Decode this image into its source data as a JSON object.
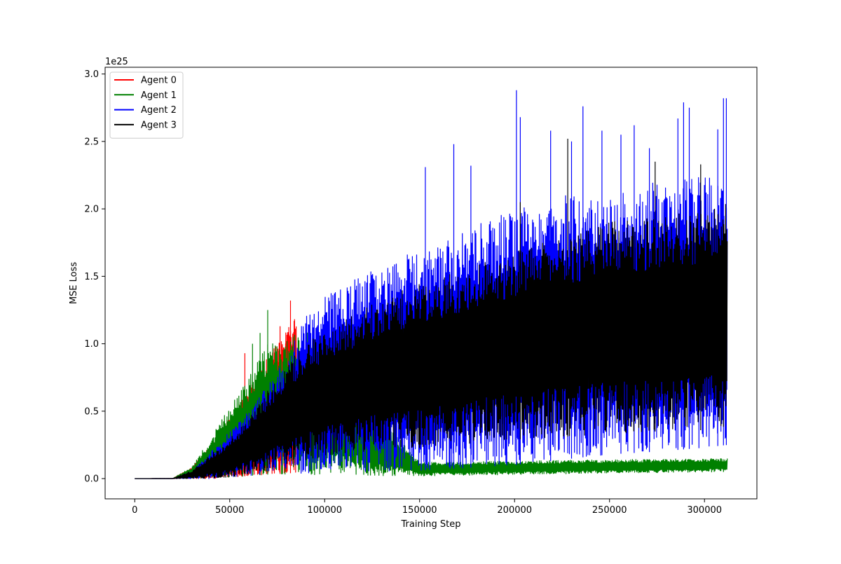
{
  "chart_data": {
    "type": "line",
    "title": "",
    "xlabel": "Training Step",
    "ylabel": "MSE Loss",
    "y_offset_text": "1e25",
    "y_scale": 1e+25,
    "xlim": [
      -15600,
      327600
    ],
    "ylim": [
      -1.5e+24,
      3.05e+25
    ],
    "x_ticks": [
      0,
      50000,
      100000,
      150000,
      200000,
      250000,
      300000
    ],
    "x_tick_labels": [
      "0",
      "50000",
      "100000",
      "150000",
      "200000",
      "250000",
      "300000"
    ],
    "y_ticks": [
      0,
      5e+24,
      1e+25,
      1.5e+25,
      2e+25,
      2.5e+25,
      3e+25
    ],
    "y_tick_labels": [
      "0.0",
      "0.5",
      "1.0",
      "1.5",
      "2.0",
      "2.5",
      "3.0"
    ],
    "grid": false,
    "legend_position": "upper-left",
    "x_max_step": 312000,
    "series": [
      {
        "name": "Agent 0",
        "color": "#ff0000",
        "x_end": 85000,
        "envelope_steps": [
          0,
          20000,
          30000,
          40000,
          50000,
          60000,
          70000,
          80000,
          85000
        ],
        "envelope_upper": [
          0,
          1e+22,
          8e+23,
          2.5e+24,
          4.5e+24,
          6.5e+24,
          9e+24,
          1.1e+25,
          1.2e+25
        ],
        "envelope_lower": [
          0,
          0,
          0,
          0,
          1e+23,
          2e+23,
          3e+23,
          4e+23,
          4e+23
        ],
        "spikes": [
          [
            58000,
            9.3e+24
          ],
          [
            76500,
            1.13e+25
          ],
          [
            82000,
            1.32e+25
          ]
        ]
      },
      {
        "name": "Agent 1",
        "color": "#008000",
        "x_end": 312000,
        "envelope_steps": [
          0,
          20000,
          30000,
          40000,
          50000,
          60000,
          70000,
          80000,
          90000,
          150000,
          200000,
          250000,
          312000
        ],
        "envelope_upper": [
          0,
          1e+22,
          9e+23,
          3e+24,
          5.5e+24,
          7.5e+24,
          1e+25,
          1.05e+25,
          1.1e+25,
          1.2e+24,
          1.3e+24,
          1.4e+24,
          1.5e+24
        ],
        "envelope_lower": [
          0,
          0,
          0,
          0,
          1e+23,
          2e+23,
          3e+23,
          3e+23,
          2e+23,
          2e+23,
          3e+23,
          4e+23,
          5e+23
        ],
        "spikes": [
          [
            70000,
            1.25e+25
          ],
          [
            66000,
            1.08e+25
          ],
          [
            62000,
            1e+25
          ]
        ]
      },
      {
        "name": "Agent 2",
        "color": "#0000ff",
        "x_end": 312000,
        "envelope_steps": [
          0,
          20000,
          30000,
          40000,
          50000,
          60000,
          80000,
          90000,
          100000,
          125000,
          150000,
          175000,
          200000,
          225000,
          250000,
          275000,
          300000,
          312000
        ],
        "envelope_upper": [
          0,
          1e+22,
          5e+23,
          2e+24,
          3.5e+24,
          5e+24,
          9e+24,
          1.2e+25,
          1.35e+25,
          1.55e+25,
          1.7e+25,
          1.85e+25,
          2e+25,
          2.1e+25,
          2.15e+25,
          2.2e+25,
          2.25e+25,
          2.3e+25
        ],
        "envelope_lower": [
          0,
          0,
          0,
          0,
          1e+23,
          2e+23,
          3e+23,
          4e+23,
          4e+23,
          5e+23,
          6e+23,
          8e+23,
          1e+24,
          1.4e+24,
          1.8e+24,
          2e+24,
          2.3e+24,
          2.5e+24
        ],
        "spikes": [
          [
            168000,
            2.48e+25
          ],
          [
            153000,
            2.31e+25
          ],
          [
            177000,
            2.32e+25
          ],
          [
            201000,
            2.88e+25
          ],
          [
            203000,
            2.68e+25
          ],
          [
            230000,
            2.5e+25
          ],
          [
            236000,
            2.76e+25
          ],
          [
            246000,
            2.58e+25
          ],
          [
            263000,
            2.62e+25
          ],
          [
            286000,
            2.67e+25
          ],
          [
            289000,
            2.79e+25
          ],
          [
            292000,
            2.75e+25
          ],
          [
            307000,
            2.59e+25
          ],
          [
            310000,
            2.82e+25
          ],
          [
            311500,
            2.82e+25
          ],
          [
            271000,
            2.45e+25
          ],
          [
            256000,
            2.55e+25
          ],
          [
            219000,
            2.58e+25
          ]
        ]
      },
      {
        "name": "Agent 3",
        "color": "#000000",
        "x_end": 312000,
        "envelope_steps": [
          0,
          20000,
          30000,
          40000,
          50000,
          60000,
          70000,
          80000,
          90000,
          100000,
          125000,
          150000,
          175000,
          200000,
          225000,
          250000,
          275000,
          300000,
          312000
        ],
        "envelope_upper": [
          0,
          1e+22,
          6e+23,
          1.8e+24,
          3e+24,
          4.5e+24,
          6.5e+24,
          8.5e+24,
          1e+25,
          1.1e+25,
          1.3e+25,
          1.45e+25,
          1.55e+25,
          1.7e+25,
          1.8e+25,
          1.9e+25,
          1.95e+25,
          2e+25,
          2.05e+25
        ],
        "envelope_lower": [
          0,
          0,
          0,
          0,
          1e+23,
          3e+23,
          6e+23,
          1e+24,
          1.3e+24,
          1.6e+24,
          2e+24,
          2.3e+24,
          2.6e+24,
          2.9e+24,
          3.1e+24,
          3.3e+24,
          3.5e+24,
          3.6e+24,
          3.6e+24
        ],
        "spikes": [
          [
            228000,
            2.52e+25
          ],
          [
            274000,
            2.35e+25
          ],
          [
            298000,
            2.33e+25
          ],
          [
            203000,
            2.05e+25
          ]
        ]
      }
    ]
  }
}
